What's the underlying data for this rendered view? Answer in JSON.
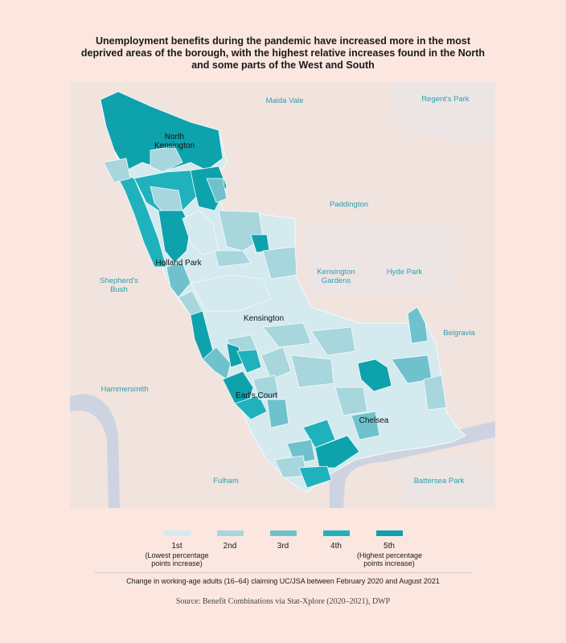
{
  "title": "Unemployment benefits during the pandemic have increased more in the most deprived areas of the borough, with the highest relative increases found in the North and some parts of the West and South",
  "colors": {
    "background": "#fbe7e0",
    "map_background": "#f1e3de",
    "river": "#cdd3e0",
    "park": "#ece5e4",
    "place_label": "#2a9fb0",
    "quintiles": [
      "#d4eaee",
      "#a7d6dd",
      "#6fc2cc",
      "#1fb2bd",
      "#0ea2ad"
    ]
  },
  "places": [
    {
      "id": "maida-vale",
      "name": "Maida Vale"
    },
    {
      "id": "regents-park",
      "name": "Regent's Park"
    },
    {
      "id": "paddington",
      "name": "Paddington"
    },
    {
      "id": "shepherds-bush",
      "name": "Shepherd's\nBush"
    },
    {
      "id": "kensington-gardens",
      "name": "Kensington\nGardens"
    },
    {
      "id": "hyde-park",
      "name": "Hyde Park"
    },
    {
      "id": "belgravia",
      "name": "Belgravia"
    },
    {
      "id": "hammersmith",
      "name": "Hammersmith"
    },
    {
      "id": "fulham",
      "name": "Fulham"
    },
    {
      "id": "battersea-park",
      "name": "Battersea Park"
    }
  ],
  "districts": [
    {
      "id": "north-kensington",
      "name": "North\nKensington"
    },
    {
      "id": "holland-park",
      "name": "Holland Park"
    },
    {
      "id": "kensington",
      "name": "Kensington"
    },
    {
      "id": "earls-court",
      "name": "Earl's Court"
    },
    {
      "id": "chelsea",
      "name": "Chelsea"
    }
  ],
  "legend": {
    "items": [
      {
        "label": "1st",
        "sub": "(Lowest percentage\npoints increase)"
      },
      {
        "label": "2nd",
        "sub": ""
      },
      {
        "label": "3rd",
        "sub": ""
      },
      {
        "label": "4th",
        "sub": ""
      },
      {
        "label": "5th",
        "sub": "(Highest percentage\npoints increase)"
      }
    ],
    "caption": "Change in working-age adults (16–64) claiming UC/JSA between February 2020 and August 2021"
  },
  "source": "Source: Benefit Combinations via Stat-Xplore (2020–2021), DWP"
}
